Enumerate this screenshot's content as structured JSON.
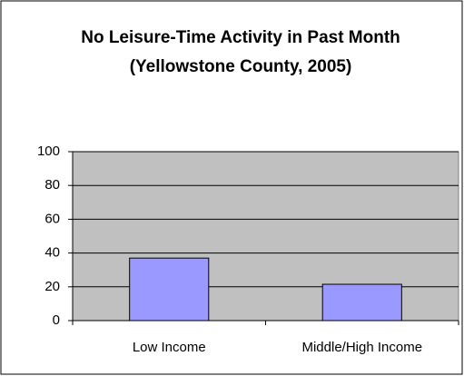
{
  "chart_data": {
    "type": "bar",
    "title": "No Leisure-Time Activity in Past Month (Yellowstone County, 2005)",
    "categories": [
      "Low Income",
      "Middle/High Income"
    ],
    "values": [
      37,
      21.5
    ],
    "color": "#9999ff",
    "ylim": [
      0,
      100
    ],
    "yticks": [
      0,
      20,
      40,
      60,
      80,
      100
    ],
    "grid": true
  }
}
